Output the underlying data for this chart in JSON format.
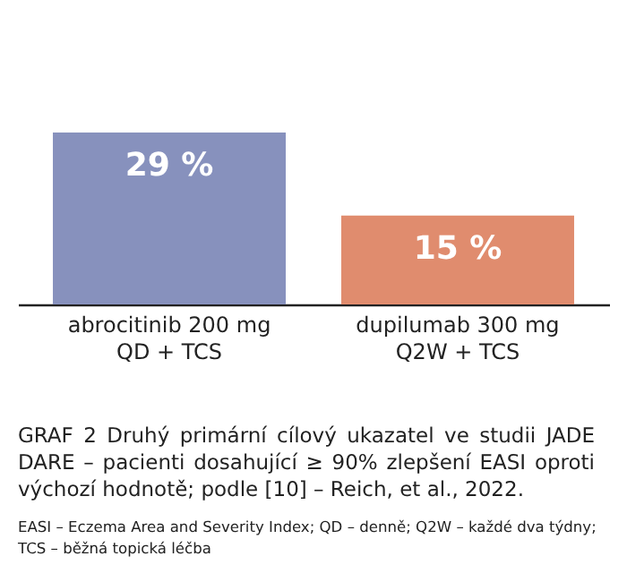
{
  "chart_data": {
    "type": "bar",
    "title": "GRAF 2 Druhý primární cílový ukazatel ve studii JADE DARE – pacienti dosahující ≥ 90% zlepšení EASI oproti výchozí hodnotě; podle [10] – Reich, et al., 2022.",
    "categories": [
      "abrocitinib 200 mg\nQD + TCS",
      "dupilumab 300 mg\nQ2W + TCS"
    ],
    "values": [
      29,
      15
    ],
    "value_labels": [
      "29 %",
      "15 %"
    ],
    "colors": [
      "#8791bd",
      "#e08c6e"
    ],
    "annotations": [
      "EASI – Eczema Area and Severity Index; QD – denně; Q2W – každé dva týdny; TCS – běžná topická léčba"
    ]
  }
}
